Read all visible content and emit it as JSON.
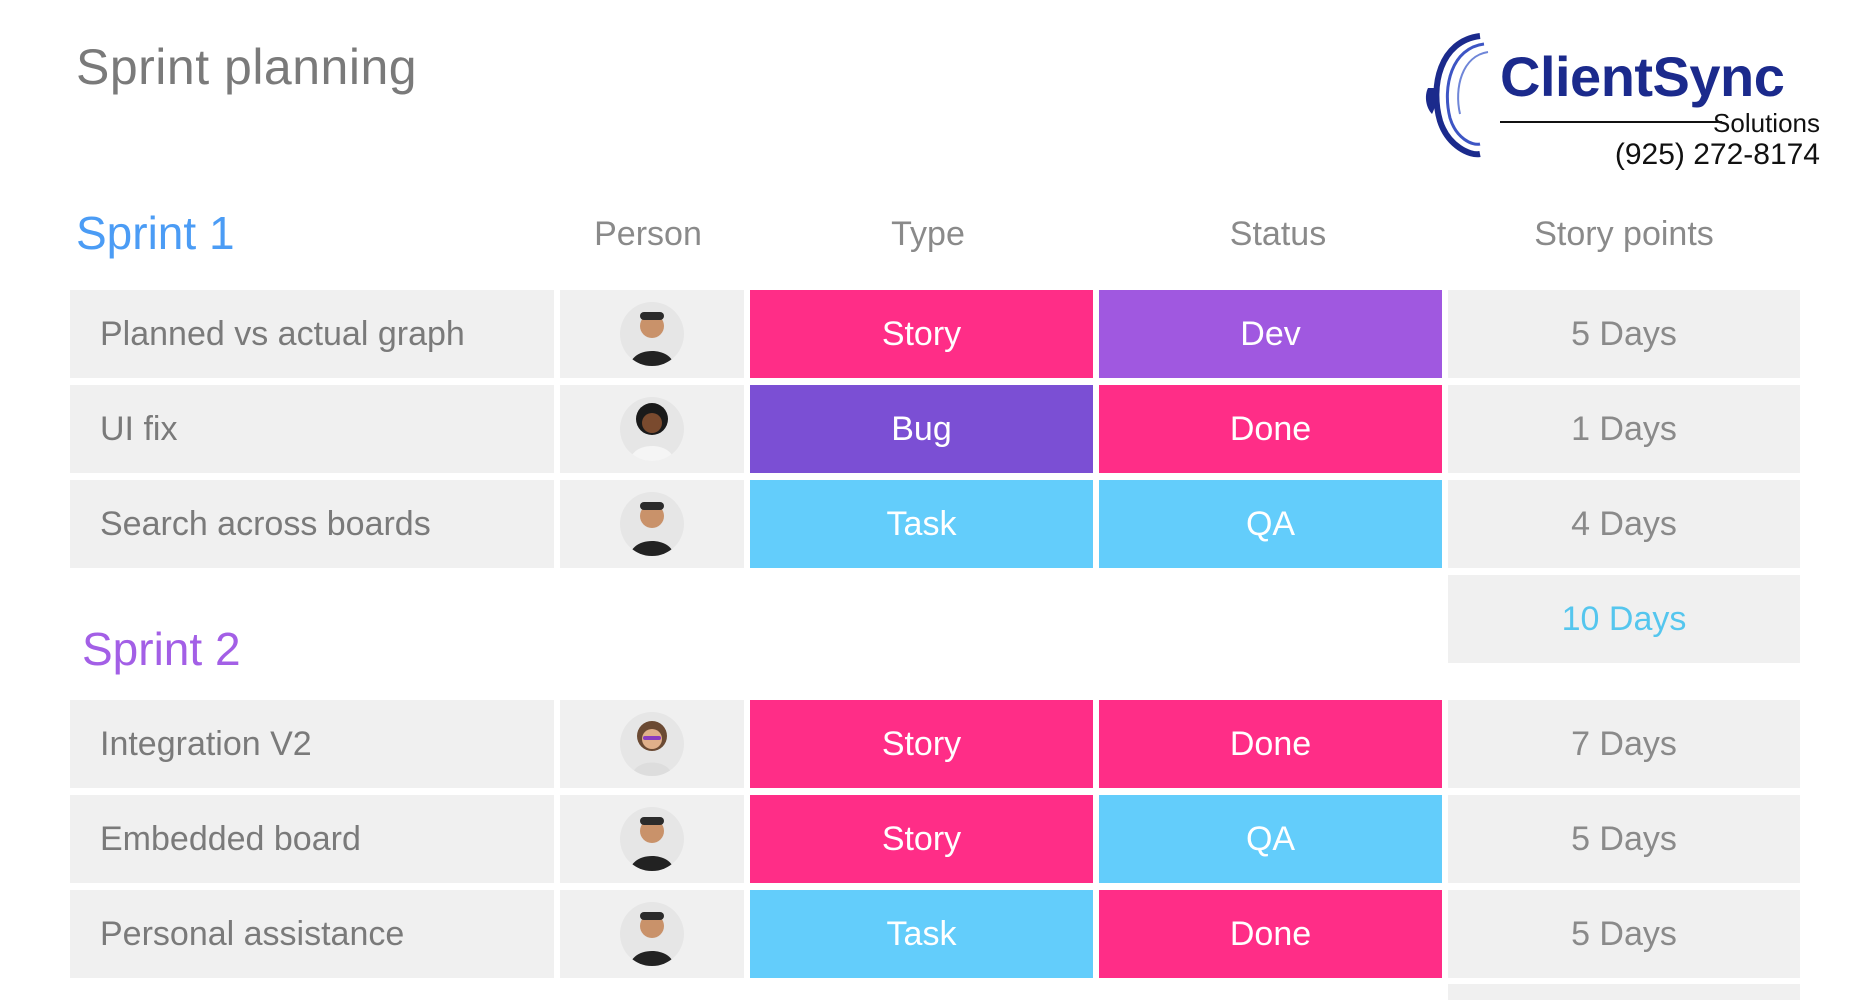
{
  "page": {
    "title": "Sprint planning"
  },
  "logo": {
    "brand": "ClientSync",
    "sub": "Solutions",
    "phone": "(925) 272-8174"
  },
  "columns": {
    "person": "Person",
    "type": "Type",
    "status": "Status",
    "points": "Story points"
  },
  "colors": {
    "story": "#ff2d87",
    "bug": "#7b4fd4",
    "task": "#63cdfb",
    "dev": "#a058e0",
    "done": "#ff2d87",
    "qa": "#63cdfb",
    "sprint1": "#4b9cf5",
    "sprint2": "#a35fe6",
    "total": "#55c6ee"
  },
  "sprint1": {
    "title": "Sprint 1",
    "rows": [
      {
        "name": "Planned vs actual graph",
        "avatar": "person-1",
        "type": "Story",
        "status": "Dev",
        "points": "5 Days"
      },
      {
        "name": "UI fix",
        "avatar": "person-2",
        "type": "Bug",
        "status": "Done",
        "points": "1 Days"
      },
      {
        "name": "Search across boards",
        "avatar": "person-1",
        "type": "Task",
        "status": "QA",
        "points": "4 Days"
      }
    ],
    "total": "10 Days"
  },
  "sprint2": {
    "title": "Sprint 2",
    "rows": [
      {
        "name": "Integration V2",
        "avatar": "person-3",
        "type": "Story",
        "status": "Done",
        "points": "7 Days"
      },
      {
        "name": "Embedded board",
        "avatar": "person-1",
        "type": "Story",
        "status": "QA",
        "points": "5 Days"
      },
      {
        "name": "Personal assistance",
        "avatar": "person-1",
        "type": "Task",
        "status": "Done",
        "points": "5 Days"
      }
    ]
  }
}
